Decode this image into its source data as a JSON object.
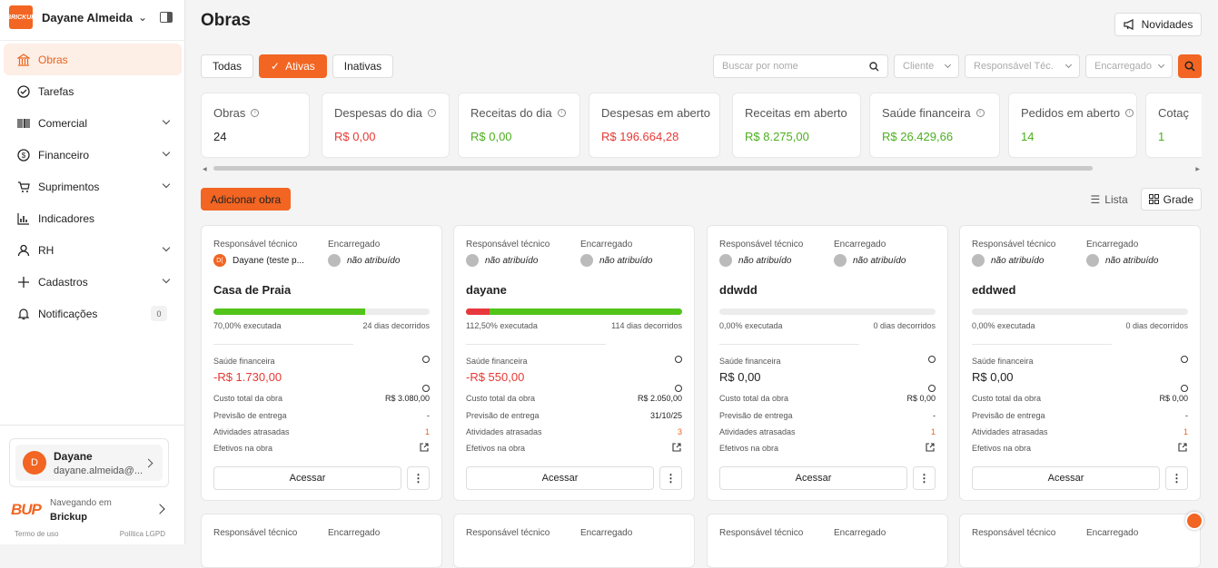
{
  "workspace": {
    "name": "Dayane Almeida ...",
    "logo_text": "BRICKUP"
  },
  "sidebar": {
    "items": [
      {
        "label": "Obras",
        "icon": "bank-icon",
        "active": true,
        "chevron": false
      },
      {
        "label": "Tarefas",
        "icon": "check-circle-icon",
        "active": false,
        "chevron": false
      },
      {
        "label": "Comercial",
        "icon": "barcode-icon",
        "active": false,
        "chevron": true
      },
      {
        "label": "Financeiro",
        "icon": "dollar-circle-icon",
        "active": false,
        "chevron": true
      },
      {
        "label": "Suprimentos",
        "icon": "cart-icon",
        "active": false,
        "chevron": true
      },
      {
        "label": "Indicadores",
        "icon": "bar-chart-icon",
        "active": false,
        "chevron": false
      },
      {
        "label": "RH",
        "icon": "user-icon",
        "active": false,
        "chevron": true
      },
      {
        "label": "Cadastros",
        "icon": "plus-icon",
        "active": false,
        "chevron": true
      },
      {
        "label": "Notificações",
        "icon": "bell-icon",
        "active": false,
        "chevron": false,
        "badge": "0"
      }
    ]
  },
  "user": {
    "initial": "D",
    "name": "Dayane",
    "email": "dayane.almeida@..."
  },
  "brickup": {
    "logo": "BUP",
    "line1": "Navegando em",
    "line2": "Brickup"
  },
  "footer": {
    "terms": "Termo de uso",
    "lgpd": "Política LGPD"
  },
  "header": {
    "title": "Obras",
    "news_label": "Novidades"
  },
  "filter_tabs": [
    "Todas",
    "Ativas",
    "Inativas"
  ],
  "active_tab": "Ativas",
  "filters": {
    "search_placeholder": "Buscar por nome",
    "cliente": "Cliente",
    "responsavel": "Responsável Téc.",
    "encarregado": "Encarregado"
  },
  "metrics": [
    {
      "label": "Obras",
      "value": "24",
      "info": true,
      "color": "#222222"
    },
    {
      "label": "Despesas do dia",
      "value": "R$ 0,00",
      "info": true,
      "color": "#e53935"
    },
    {
      "label": "Receitas do dia",
      "value": "R$ 0,00",
      "info": true,
      "color": "#4caf1e"
    },
    {
      "label": "Despesas em aberto",
      "value": "R$ 196.664,28",
      "info": false,
      "color": "#e53935"
    },
    {
      "label": "Receitas em aberto",
      "value": "R$ 8.275,00",
      "info": false,
      "color": "#4caf1e"
    },
    {
      "label": "Saúde financeira",
      "value": "R$ 26.429,66",
      "info": true,
      "color": "#4caf1e"
    },
    {
      "label": "Pedidos em aberto",
      "value": "14",
      "info": true,
      "color": "#4caf1e"
    },
    {
      "label": "Cotaç",
      "value": "1",
      "info": false,
      "color": "#4caf1e"
    }
  ],
  "actions": {
    "add_label": "Adicionar obra",
    "list_label": "Lista",
    "grid_label": "Grade"
  },
  "labels": {
    "resp": "Responsável técnico",
    "enc": "Encarregado",
    "saude": "Saúde financeira",
    "custo": "Custo total da obra",
    "previsao": "Previsão de entrega",
    "atividades": "Atividades atrasadas",
    "efetivos": "Efetivos na obra",
    "acessar": "Acessar"
  },
  "cards": [
    {
      "resp": "Dayane (teste p...",
      "resp_initials": "D(",
      "enc": "não atribuído",
      "name": "Casa de Praia",
      "progress": 0.7,
      "over": false,
      "exec": "70,00% executada",
      "days": "24 dias decorridos",
      "saude": "-R$ 1.730,00",
      "saude_neg": true,
      "custo": "R$ 3.080,00",
      "previsao": "-",
      "atrasadas": "1"
    },
    {
      "resp": "não atribuído",
      "resp_initials": "",
      "enc": "não atribuído",
      "name": "dayane",
      "progress": 1.125,
      "over": true,
      "exec": "112,50% executada",
      "days": "114 dias decorridos",
      "saude": "-R$ 550,00",
      "saude_neg": true,
      "custo": "R$ 2.050,00",
      "previsao": "31/10/25",
      "atrasadas": "3"
    },
    {
      "resp": "não atribuído",
      "resp_initials": "",
      "enc": "não atribuído",
      "name": "ddwdd",
      "progress": 0,
      "over": false,
      "exec": "0,00% executada",
      "days": "0 dias decorridos",
      "saude": "R$ 0,00",
      "saude_neg": false,
      "custo": "R$ 0,00",
      "previsao": "-",
      "atrasadas": "1"
    },
    {
      "resp": "não atribuído",
      "resp_initials": "",
      "enc": "não atribuído",
      "name": "eddwed",
      "progress": 0,
      "over": false,
      "exec": "0,00% executada",
      "days": "0 dias decorridos",
      "saude": "R$ 0,00",
      "saude_neg": false,
      "custo": "R$ 0,00",
      "previsao": "-",
      "atrasadas": "1"
    }
  ]
}
